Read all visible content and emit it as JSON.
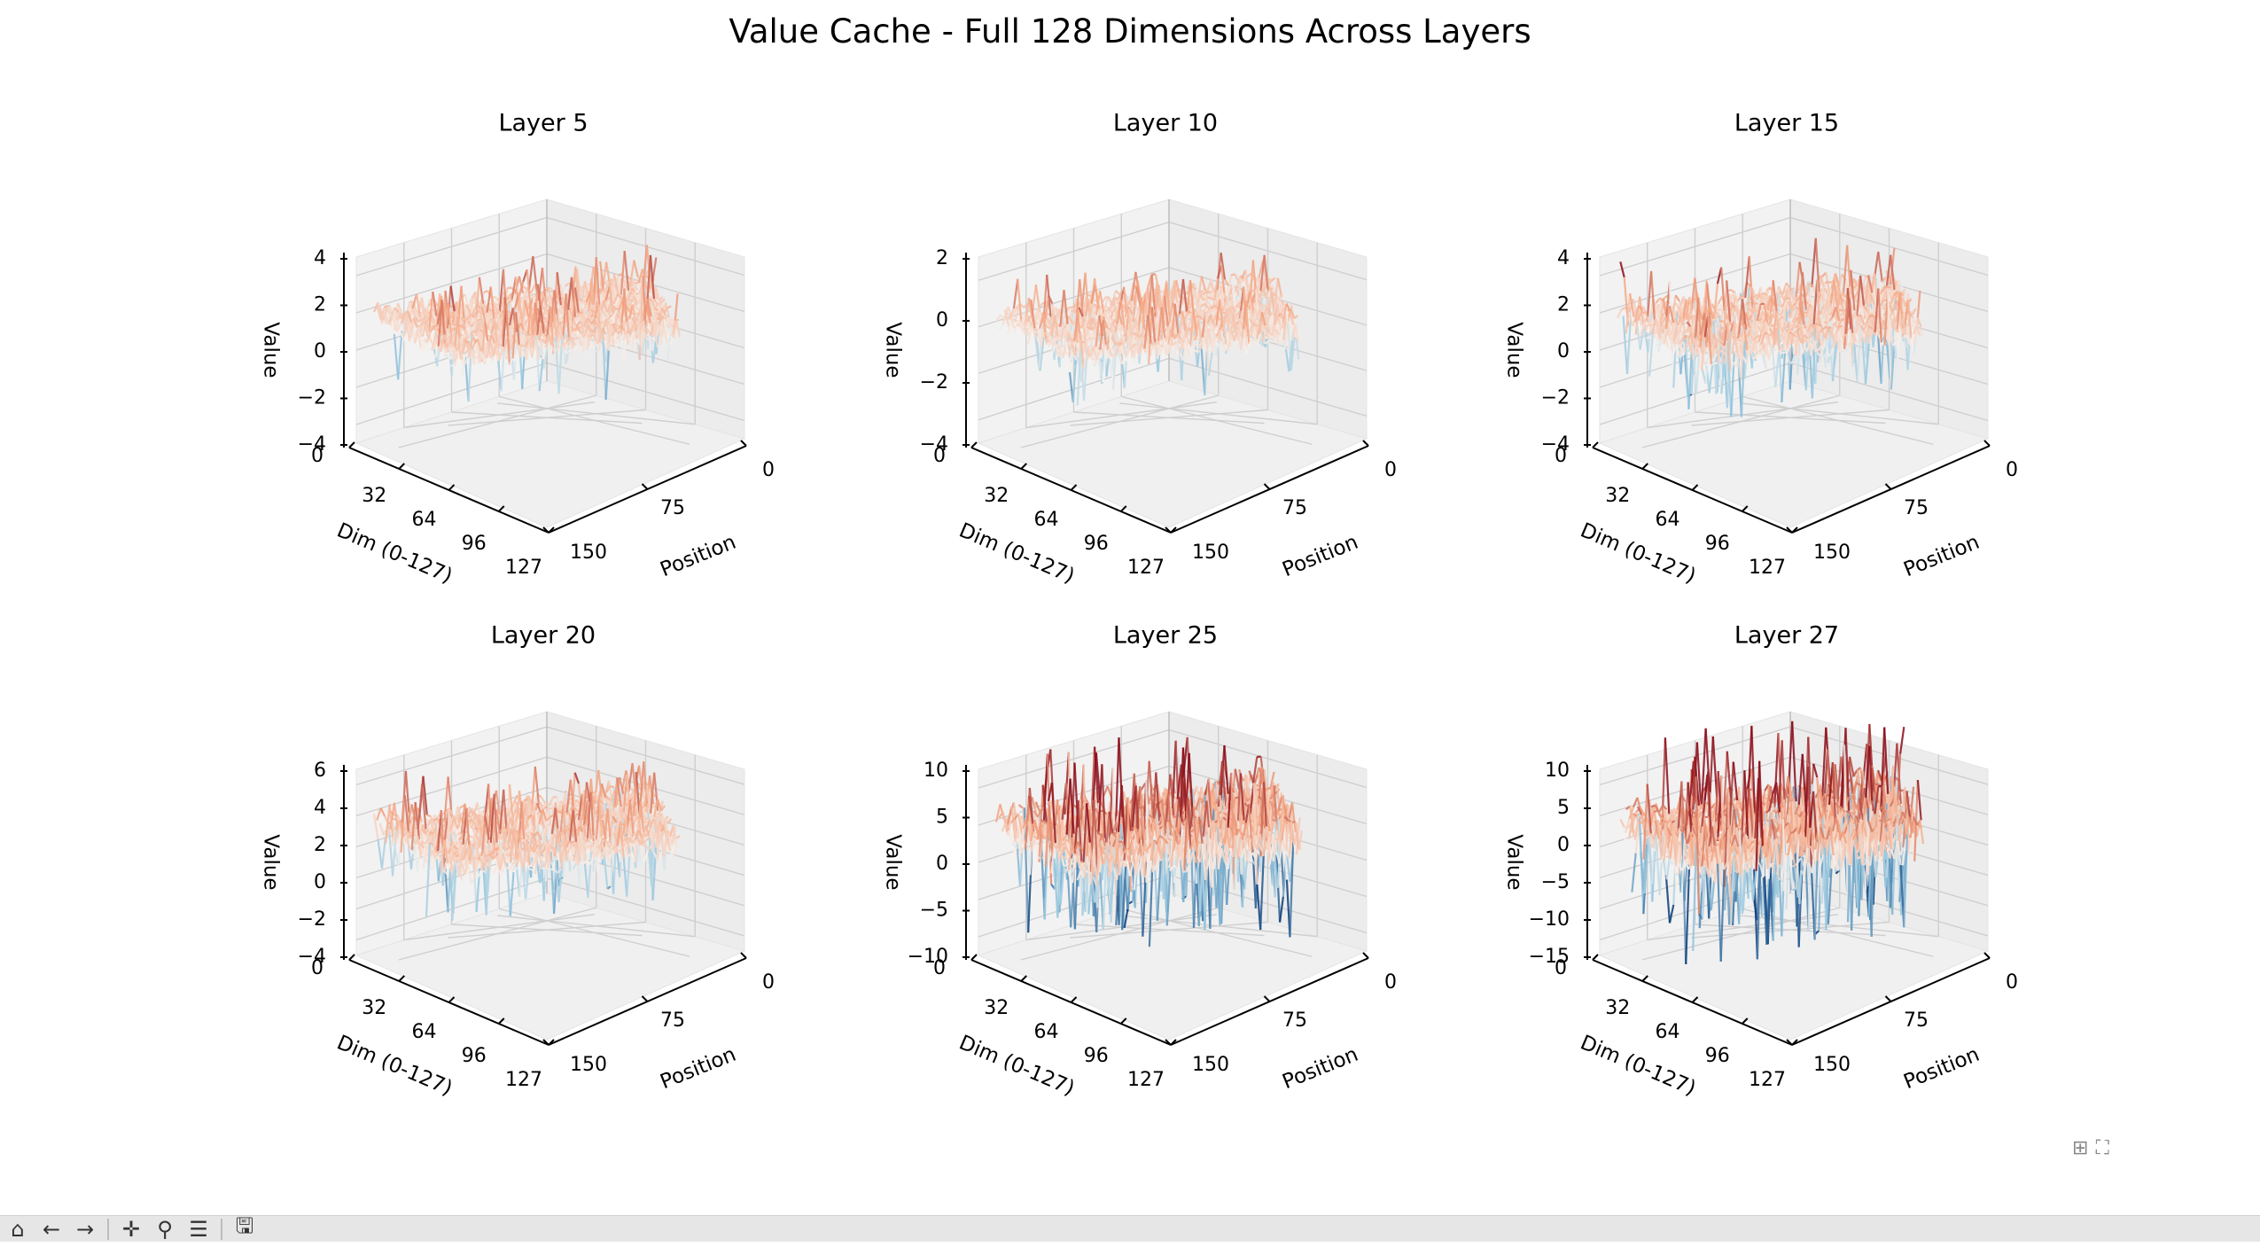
{
  "figure": {
    "title": "Value Cache - Full 128 Dimensions Across Layers"
  },
  "chart_data": [
    {
      "type": "surface3d",
      "title": "Layer 5",
      "xlabel": "Dim (0-127)",
      "ylabel": "Position",
      "zlabel": "Value",
      "x_ticks": [
        "0",
        "32",
        "64",
        "96",
        "127"
      ],
      "y_ticks": [
        "0",
        "75",
        "150"
      ],
      "z_ticks": [
        "4",
        "2",
        "0",
        "−2",
        "−4"
      ],
      "z_range": [
        -4,
        4
      ]
    },
    {
      "type": "surface3d",
      "title": "Layer 10",
      "xlabel": "Dim (0-127)",
      "ylabel": "Position",
      "zlabel": "Value",
      "x_ticks": [
        "0",
        "32",
        "64",
        "96",
        "127"
      ],
      "y_ticks": [
        "0",
        "75",
        "150"
      ],
      "z_ticks": [
        "2",
        "0",
        "−2",
        "−4"
      ],
      "z_range": [
        -4,
        3
      ]
    },
    {
      "type": "surface3d",
      "title": "Layer 15",
      "xlabel": "Dim (0-127)",
      "ylabel": "Position",
      "zlabel": "Value",
      "x_ticks": [
        "0",
        "32",
        "64",
        "96",
        "127"
      ],
      "y_ticks": [
        "0",
        "75",
        "150"
      ],
      "z_ticks": [
        "4",
        "2",
        "0",
        "−2",
        "−4"
      ],
      "z_range": [
        -4,
        4
      ]
    },
    {
      "type": "surface3d",
      "title": "Layer 20",
      "xlabel": "Dim (0-127)",
      "ylabel": "Position",
      "zlabel": "Value",
      "x_ticks": [
        "0",
        "32",
        "64",
        "96",
        "127"
      ],
      "y_ticks": [
        "0",
        "75",
        "150"
      ],
      "z_ticks": [
        "6",
        "4",
        "2",
        "0",
        "−2",
        "−4"
      ],
      "z_range": [
        -4,
        7
      ]
    },
    {
      "type": "surface3d",
      "title": "Layer 25",
      "xlabel": "Dim (0-127)",
      "ylabel": "Position",
      "zlabel": "Value",
      "x_ticks": [
        "0",
        "32",
        "64",
        "96",
        "127"
      ],
      "y_ticks": [
        "0",
        "75",
        "150"
      ],
      "z_ticks": [
        "10",
        "5",
        "0",
        "−5",
        "−10"
      ],
      "z_range": [
        -12,
        12
      ]
    },
    {
      "type": "surface3d",
      "title": "Layer 27",
      "xlabel": "Dim (0-127)",
      "ylabel": "Position",
      "zlabel": "Value",
      "x_ticks": [
        "0",
        "32",
        "64",
        "96",
        "127"
      ],
      "y_ticks": [
        "0",
        "75",
        "150"
      ],
      "z_ticks": [
        "10",
        "5",
        "0",
        "−5",
        "−10",
        "−15"
      ],
      "z_range": [
        -15,
        14
      ]
    }
  ],
  "colormap": {
    "name": "RdBu_r",
    "pos_strong": "#8b0d1a",
    "pos_mid": "#f4a582",
    "neutral": "#f7f2ee",
    "neg_mid": "#92c5de",
    "neg_strong": "#0b3d7a"
  },
  "toolbar": {
    "icons": [
      "home-icon",
      "back-arrow-icon",
      "forward-arrow-icon",
      "pan-icon",
      "zoom-icon",
      "configure-icon",
      "save-icon"
    ]
  }
}
